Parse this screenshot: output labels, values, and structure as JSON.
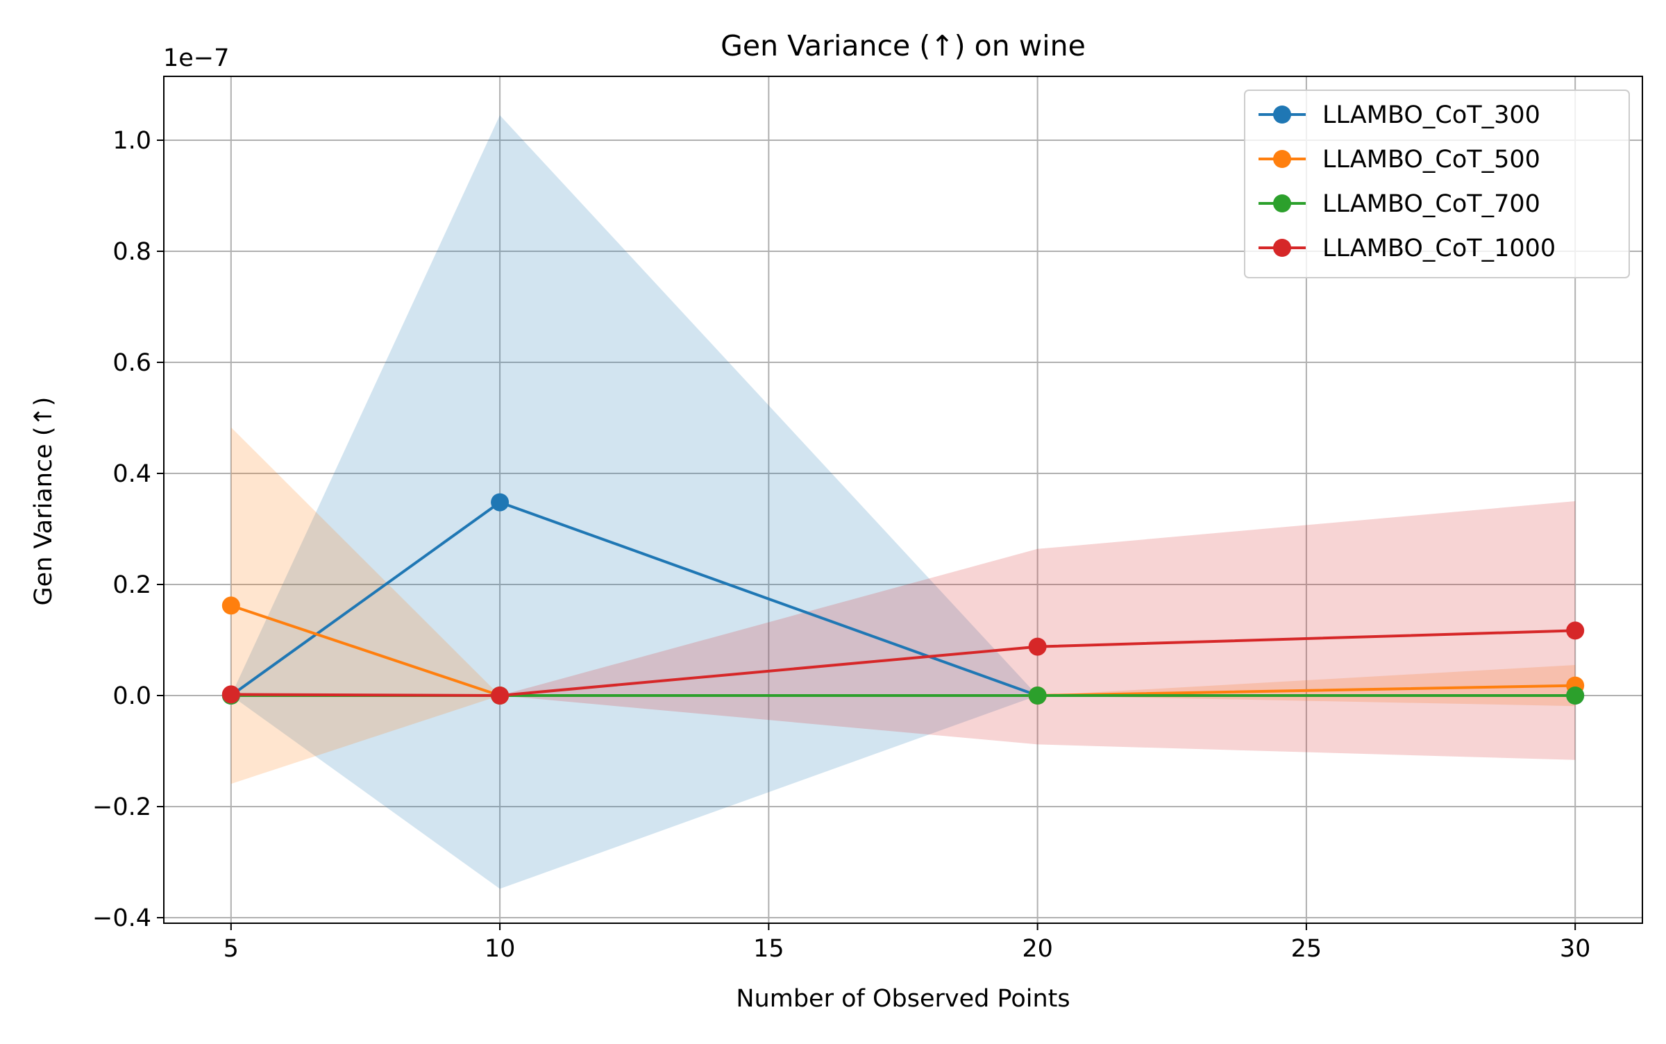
{
  "chart_data": {
    "type": "line",
    "title": "Gen Variance (↑) on wine",
    "xlabel": "Number of Observed Points",
    "ylabel": "Gen Variance (↑)",
    "y_scale_label": "1e−7",
    "x": [
      5,
      10,
      20,
      30
    ],
    "xlim": [
      3.75,
      31.25
    ],
    "ylim": [
      -0.41,
      1.115
    ],
    "x_ticks": [
      5,
      10,
      15,
      20,
      25,
      30
    ],
    "y_ticks": [
      -0.4,
      -0.2,
      0.0,
      0.2,
      0.4,
      0.6,
      0.8,
      1.0
    ],
    "y_tick_labels": [
      "−0.4",
      "−0.2",
      "0.0",
      "0.2",
      "0.4",
      "0.6",
      "0.8",
      "1.0"
    ],
    "grid": true,
    "legend_position": "top-right",
    "series": [
      {
        "name": "LLAMBO_CoT_300",
        "color": "#1f77b4",
        "values": [
          0.0,
          0.348,
          0.0,
          0.0
        ],
        "band_upper": [
          0.0,
          1.045,
          0.0,
          0.0
        ],
        "band_lower": [
          0.0,
          -0.348,
          0.0,
          0.0
        ]
      },
      {
        "name": "LLAMBO_CoT_500",
        "color": "#ff7f0e",
        "values": [
          0.162,
          0.0,
          0.0,
          0.018
        ],
        "band_upper": [
          0.483,
          0.0,
          0.0,
          0.055
        ],
        "band_lower": [
          -0.159,
          0.0,
          0.0,
          -0.019
        ]
      },
      {
        "name": "LLAMBO_CoT_700",
        "color": "#2ca02c",
        "values": [
          0.0,
          0.0,
          0.0,
          0.0
        ],
        "band_upper": [
          0.0,
          0.0,
          0.0,
          0.0
        ],
        "band_lower": [
          0.0,
          0.0,
          0.0,
          0.0
        ]
      },
      {
        "name": "LLAMBO_CoT_1000",
        "color": "#d62728",
        "values": [
          0.002,
          0.0,
          0.088,
          0.117
        ],
        "band_upper": [
          0.002,
          0.0,
          0.264,
          0.35
        ],
        "band_lower": [
          0.002,
          0.0,
          -0.088,
          -0.116
        ]
      }
    ]
  }
}
